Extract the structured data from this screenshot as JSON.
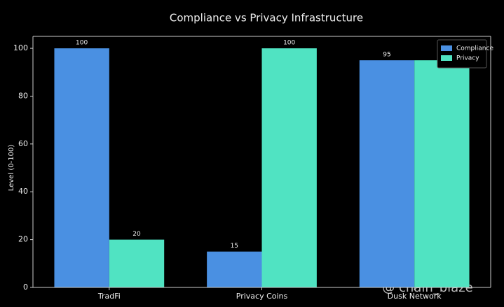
{
  "chart_data": {
    "type": "bar",
    "title": "Compliance vs Privacy Infrastructure",
    "y_label": "Level (0-100)",
    "categories": [
      "TradFi",
      "Privacy Coins",
      "Dusk Network"
    ],
    "series": [
      {
        "name": "Compliance",
        "color": "#4a90e2",
        "values": [
          100,
          15,
          95
        ]
      },
      {
        "name": "Privacy",
        "color": "#50e3c2",
        "values": [
          20,
          100,
          95
        ]
      }
    ],
    "ylim": [
      0,
      105
    ],
    "yticks": [
      0,
      20,
      40,
      60,
      80,
      100
    ],
    "grid": false,
    "legend": "upper right",
    "watermark": "@ chain_blaze"
  }
}
